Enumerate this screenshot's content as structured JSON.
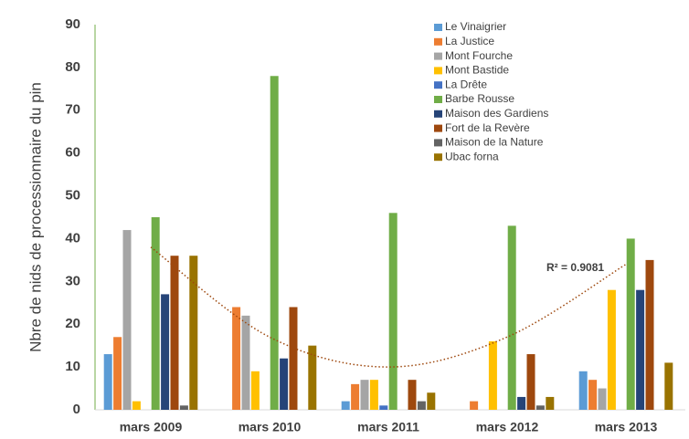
{
  "chart_data": {
    "type": "bar",
    "y_label": "Nbre de nids de processionnaire du pin",
    "categories": [
      "mars 2009",
      "mars 2010",
      "mars 2011",
      "mars 2012",
      "mars 2013"
    ],
    "series": [
      {
        "name": "Le Vinaigrier",
        "color": "#5b9bd5",
        "values": [
          13,
          0,
          2,
          0,
          9
        ]
      },
      {
        "name": "La Justice",
        "color": "#ed7d31",
        "values": [
          17,
          24,
          6,
          2,
          7
        ]
      },
      {
        "name": "Mont Fourche",
        "color": "#a5a5a5",
        "values": [
          42,
          22,
          7,
          0,
          5
        ]
      },
      {
        "name": "Mont Bastide",
        "color": "#ffc000",
        "values": [
          2,
          9,
          7,
          16,
          28
        ]
      },
      {
        "name": "La Drête",
        "color": "#4472c4",
        "values": [
          0,
          0,
          1,
          0,
          0
        ]
      },
      {
        "name": "Barbe Rousse",
        "color": "#70ad47",
        "values": [
          45,
          78,
          46,
          43,
          40
        ]
      },
      {
        "name": "Maison des Gardiens",
        "color": "#264478",
        "values": [
          27,
          12,
          0,
          3,
          28
        ]
      },
      {
        "name": "Fort de la Revère",
        "color": "#9e480e",
        "values": [
          36,
          24,
          7,
          13,
          35
        ]
      },
      {
        "name": "Maison de la Nature",
        "color": "#636363",
        "values": [
          1,
          0,
          2,
          1,
          0
        ]
      },
      {
        "name": "Ubac forna",
        "color": "#997300",
        "values": [
          36,
          15,
          4,
          3,
          11
        ]
      }
    ],
    "trendline": {
      "color": "#9e480e",
      "values": [
        38,
        17,
        10,
        17,
        34
      ],
      "label": "R² = 0.9081"
    },
    "ylim": [
      0,
      90
    ],
    "yticks": [
      0,
      10,
      20,
      30,
      40,
      50,
      60,
      70,
      80,
      90
    ]
  }
}
